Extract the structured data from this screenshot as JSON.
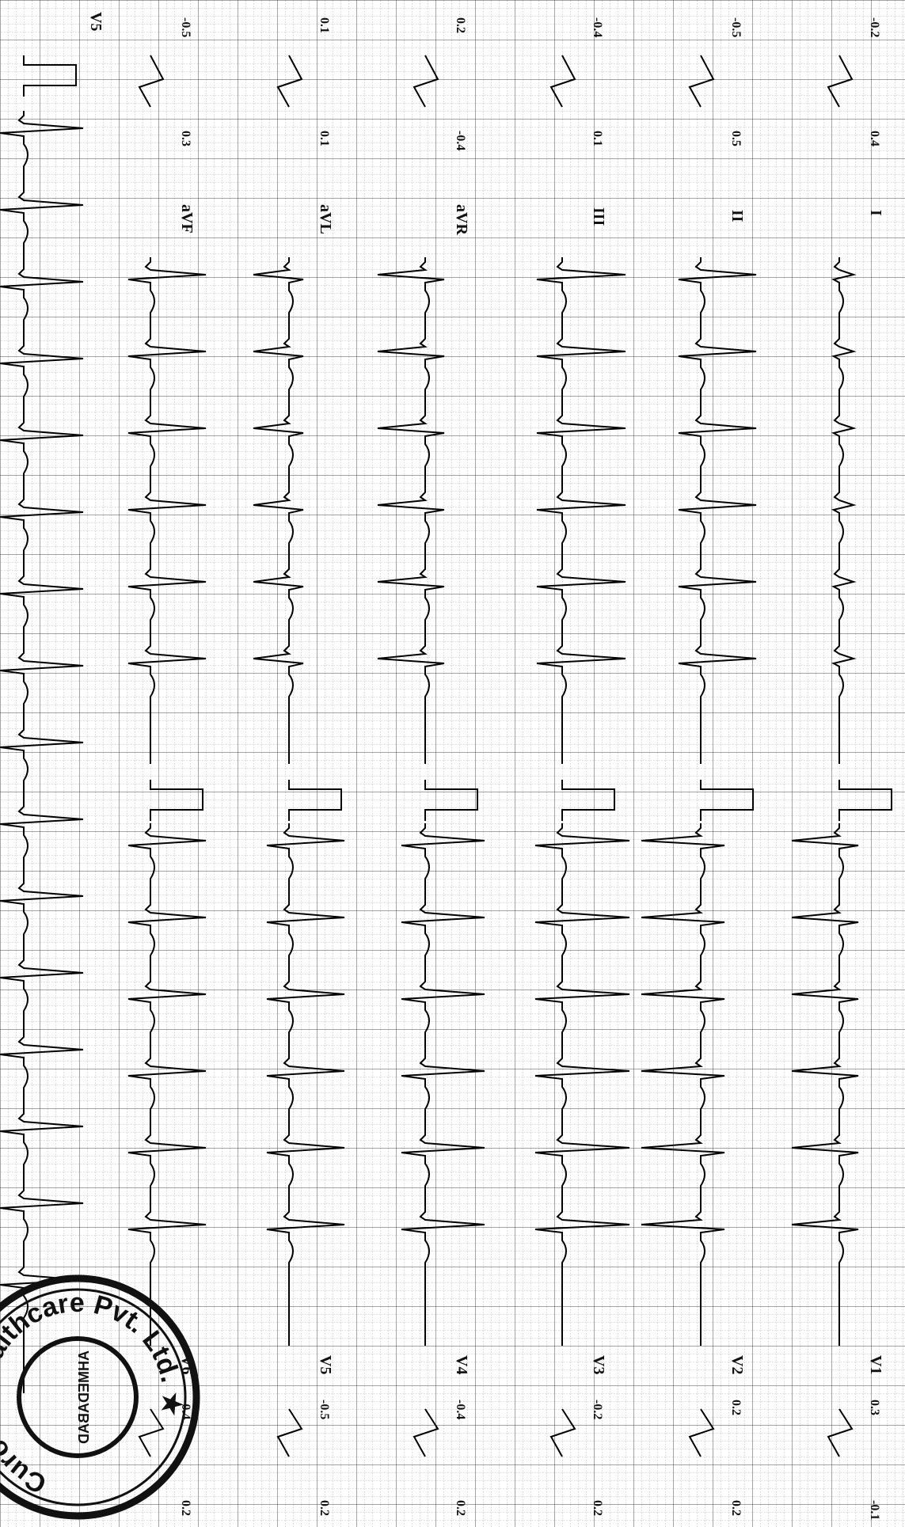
{
  "colors": {
    "paper": "#ffffff",
    "grid_fine": "#8a8a8a",
    "grid_major": "#3c3c3c",
    "trace": "#000000",
    "stamp_ink": "#111111"
  },
  "leads_top": [
    {
      "lead": "I",
      "label": "I",
      "min": "-0.2",
      "max": "0.4"
    },
    {
      "lead": "II",
      "label": "II",
      "min": "-0.5",
      "max": "0.5"
    },
    {
      "lead": "III",
      "label": "III",
      "min": "-0.4",
      "max": "0.1"
    },
    {
      "lead": "aVR",
      "label": "aVR",
      "min": "0.2",
      "max": "-0.4"
    },
    {
      "lead": "aVL",
      "label": "aVL",
      "min": "0.1",
      "max": "0.1"
    },
    {
      "lead": "aVF",
      "label": "aVF",
      "min": "-0.5",
      "max": "0.3"
    }
  ],
  "leads_bottom": [
    {
      "lead": "V1",
      "label": "V1",
      "min": "0.3",
      "max": "-0.1"
    },
    {
      "lead": "V2",
      "label": "V2",
      "min": "0.2",
      "max": "0.2"
    },
    {
      "lead": "V3",
      "label": "V3",
      "min": "-0.2",
      "max": "0.2"
    },
    {
      "lead": "V4",
      "label": "V4",
      "min": "-0.4",
      "max": "0.2"
    },
    {
      "lead": "V5",
      "label": "V5",
      "min": "-0.5",
      "max": "0.2"
    },
    {
      "lead": "V6",
      "label": "V6",
      "min": "-0.4",
      "max": "0.2"
    }
  ],
  "rhythm_strip": {
    "label": "V5"
  },
  "stamp": {
    "outer_text": "Curovis Healthcare Pvt. Ltd. ★",
    "center_text": "AHMEDABAD"
  }
}
